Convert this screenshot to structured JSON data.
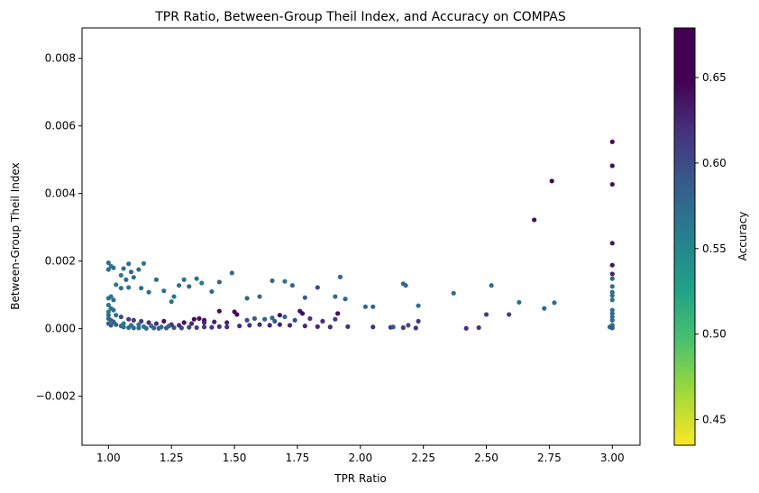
{
  "chart_data": {
    "type": "scatter",
    "title": "TPR Ratio, Between-Group Theil Index, and Accuracy on COMPAS",
    "xlabel": "TPR Ratio",
    "ylabel": "Between-Group Theil Index",
    "colorbar_label": "Accuracy",
    "colormap": "viridis_r",
    "xlim": [
      0.895,
      3.11
    ],
    "ylim": [
      -0.00345,
      0.0089
    ],
    "clim": [
      0.435,
      0.679
    ],
    "x_ticks": [
      1.0,
      1.25,
      1.5,
      1.75,
      2.0,
      2.25,
      2.5,
      2.75,
      3.0
    ],
    "x_tick_labels": [
      "1.00",
      "1.25",
      "1.50",
      "1.75",
      "2.00",
      "2.25",
      "2.50",
      "2.75",
      "3.00"
    ],
    "y_ticks": [
      -0.002,
      0.0,
      0.002,
      0.004,
      0.006,
      0.008
    ],
    "y_tick_labels": [
      "−0.002",
      "0.000",
      "0.002",
      "0.004",
      "0.006",
      "0.008"
    ],
    "c_ticks": [
      0.45,
      0.5,
      0.55,
      0.6,
      0.65
    ],
    "c_tick_labels": [
      "0.45",
      "0.50",
      "0.55",
      "0.60",
      "0.65"
    ],
    "points": [
      [
        1.0,
        0.00195,
        0.57
      ],
      [
        1.01,
        0.00185,
        0.56
      ],
      [
        1.0,
        0.00175,
        0.575
      ],
      [
        1.02,
        0.0018,
        0.57
      ],
      [
        1.06,
        0.00178,
        0.57
      ],
      [
        1.08,
        0.00192,
        0.575
      ],
      [
        1.09,
        0.00168,
        0.58
      ],
      [
        1.14,
        0.00193,
        0.565
      ],
      [
        1.12,
        0.00175,
        0.57
      ],
      [
        1.05,
        0.00158,
        0.56
      ],
      [
        1.07,
        0.00145,
        0.575
      ],
      [
        1.1,
        0.00152,
        0.57
      ],
      [
        1.03,
        0.0013,
        0.56
      ],
      [
        1.05,
        0.0012,
        0.57
      ],
      [
        1.08,
        0.00122,
        0.565
      ],
      [
        1.13,
        0.0012,
        0.57
      ],
      [
        1.16,
        0.00108,
        0.575
      ],
      [
        1.19,
        0.00145,
        0.575
      ],
      [
        1.22,
        0.00112,
        0.57
      ],
      [
        1.26,
        0.00095,
        0.565
      ],
      [
        1.3,
        0.00145,
        0.57
      ],
      [
        1.32,
        0.00125,
        0.575
      ],
      [
        1.35,
        0.00148,
        0.57
      ],
      [
        1.37,
        0.00135,
        0.565
      ],
      [
        1.41,
        0.0011,
        0.575
      ],
      [
        1.44,
        0.00138,
        0.58
      ],
      [
        1.28,
        0.00128,
        0.57
      ],
      [
        1.25,
        0.0008,
        0.57
      ],
      [
        1.49,
        0.00165,
        0.575
      ],
      [
        1.55,
        0.0009,
        0.58
      ],
      [
        1.65,
        0.00142,
        0.575
      ],
      [
        1.7,
        0.0014,
        0.57
      ],
      [
        1.73,
        0.00128,
        0.58
      ],
      [
        1.6,
        0.00095,
        0.575
      ],
      [
        1.78,
        0.00092,
        0.585
      ],
      [
        1.92,
        0.00153,
        0.58
      ],
      [
        1.83,
        0.00122,
        0.6
      ],
      [
        1.9,
        0.00095,
        0.575
      ],
      [
        1.94,
        0.00088,
        0.58
      ],
      [
        2.02,
        0.00065,
        0.575
      ],
      [
        2.05,
        0.00065,
        0.58
      ],
      [
        2.17,
        0.00133,
        0.575
      ],
      [
        2.18,
        0.00128,
        0.575
      ],
      [
        2.23,
        0.00068,
        0.57
      ],
      [
        2.37,
        0.00105,
        0.575
      ],
      [
        2.52,
        0.00128,
        0.575
      ],
      [
        2.63,
        0.00078,
        0.57
      ],
      [
        2.73,
        0.0006,
        0.575
      ],
      [
        2.77,
        0.00077,
        0.57
      ],
      [
        2.5,
        0.00042,
        0.61
      ],
      [
        2.59,
        0.00042,
        0.61
      ],
      [
        2.69,
        0.00322,
        0.665
      ],
      [
        2.76,
        0.00437,
        0.67
      ],
      [
        3.0,
        0.00553,
        0.665
      ],
      [
        3.0,
        0.00482,
        0.665
      ],
      [
        3.0,
        0.00427,
        0.66
      ],
      [
        3.0,
        0.00253,
        0.655
      ],
      [
        3.0,
        0.00188,
        0.655
      ],
      [
        3.0,
        0.00162,
        0.64
      ],
      [
        3.0,
        0.00148,
        0.575
      ],
      [
        3.0,
        0.00125,
        0.57
      ],
      [
        3.0,
        0.00108,
        0.575
      ],
      [
        3.0,
        0.00098,
        0.57
      ],
      [
        3.0,
        0.00085,
        0.565
      ],
      [
        3.0,
        0.00055,
        0.57
      ],
      [
        3.0,
        0.00045,
        0.575
      ],
      [
        3.0,
        0.00035,
        0.57
      ],
      [
        3.0,
        0.00025,
        0.575
      ],
      [
        3.0,
        0.0001,
        0.575
      ],
      [
        2.99,
        5e-05,
        0.58
      ],
      [
        3.0,
        2e-05,
        0.59
      ],
      [
        1.34,
        0.00028,
        0.67
      ],
      [
        1.36,
        0.0003,
        0.665
      ],
      [
        1.38,
        0.00025,
        0.67
      ],
      [
        1.5,
        0.0005,
        0.665
      ],
      [
        1.51,
        0.00042,
        0.67
      ],
      [
        1.44,
        0.00052,
        0.665
      ],
      [
        1.76,
        0.00052,
        0.66
      ],
      [
        1.77,
        0.00045,
        0.665
      ],
      [
        1.91,
        0.00045,
        0.665
      ],
      [
        1.68,
        0.0004,
        0.66
      ],
      [
        1.22,
        0.00022,
        0.66
      ],
      [
        1.3,
        0.00018,
        0.665
      ],
      [
        1.0,
        0.0009,
        0.57
      ],
      [
        1.01,
        0.00095,
        0.565
      ],
      [
        1.02,
        0.00085,
        0.57
      ],
      [
        1.0,
        0.0007,
        0.565
      ],
      [
        1.01,
        0.0006,
        0.57
      ],
      [
        1.0,
        0.0005,
        0.56
      ],
      [
        1.02,
        0.00055,
        0.57
      ],
      [
        1.0,
        0.0004,
        0.575
      ],
      [
        1.03,
        0.0004,
        0.57
      ],
      [
        1.0,
        0.0003,
        0.575
      ],
      [
        1.01,
        0.00025,
        0.58
      ],
      [
        1.02,
        0.0002,
        0.585
      ],
      [
        1.0,
        0.00015,
        0.58
      ],
      [
        1.01,
        0.0001,
        0.585
      ],
      [
        1.03,
        0.00012,
        0.58
      ],
      [
        1.05,
        8e-05,
        0.575
      ],
      [
        1.06,
        5e-05,
        0.57
      ],
      [
        1.08,
        3e-05,
        0.575
      ],
      [
        1.1,
        2e-05,
        0.575
      ],
      [
        1.12,
        2e-05,
        0.57
      ],
      [
        1.15,
        1e-05,
        0.58
      ],
      [
        1.18,
        2e-05,
        0.585
      ],
      [
        1.2,
        1e-05,
        0.59
      ],
      [
        1.23,
        2e-05,
        0.59
      ],
      [
        1.26,
        3e-05,
        0.595
      ],
      [
        1.29,
        2e-05,
        0.6
      ],
      [
        1.32,
        4e-05,
        0.605
      ],
      [
        1.35,
        3e-05,
        0.61
      ],
      [
        1.38,
        5e-05,
        0.61
      ],
      [
        1.41,
        4e-05,
        0.615
      ],
      [
        1.44,
        6e-05,
        0.62
      ],
      [
        1.47,
        5e-05,
        0.62
      ],
      [
        1.52,
        8e-05,
        0.625
      ],
      [
        1.56,
        0.0001,
        0.62
      ],
      [
        1.6,
        0.00012,
        0.63
      ],
      [
        1.64,
        0.0001,
        0.63
      ],
      [
        1.68,
        0.00012,
        0.635
      ],
      [
        1.72,
        0.0001,
        0.63
      ],
      [
        1.78,
        8e-05,
        0.63
      ],
      [
        1.83,
        6e-05,
        0.63
      ],
      [
        1.88,
        5e-05,
        0.625
      ],
      [
        1.95,
        6e-05,
        0.62
      ],
      [
        2.05,
        5e-05,
        0.62
      ],
      [
        2.12,
        4e-05,
        0.62
      ],
      [
        2.17,
        3e-05,
        0.615
      ],
      [
        2.22,
        2e-05,
        0.62
      ],
      [
        2.42,
        1e-05,
        0.62
      ],
      [
        2.47,
        3e-05,
        0.615
      ],
      [
        1.05,
        0.00035,
        0.6
      ],
      [
        1.08,
        0.00028,
        0.61
      ],
      [
        1.1,
        0.00025,
        0.615
      ],
      [
        1.13,
        0.00022,
        0.61
      ],
      [
        1.16,
        0.00018,
        0.62
      ],
      [
        1.19,
        0.00015,
        0.625
      ],
      [
        1.25,
        0.00012,
        0.62
      ],
      [
        1.28,
        0.0001,
        0.625
      ],
      [
        1.33,
        0.00015,
        0.63
      ],
      [
        1.38,
        0.00018,
        0.635
      ],
      [
        1.42,
        0.0002,
        0.64
      ],
      [
        1.47,
        0.00018,
        0.635
      ],
      [
        1.55,
        0.00025,
        0.6
      ],
      [
        1.58,
        0.0003,
        0.59
      ],
      [
        1.62,
        0.00028,
        0.585
      ],
      [
        1.65,
        0.00032,
        0.58
      ],
      [
        1.66,
        0.00022,
        0.59
      ],
      [
        1.7,
        0.00035,
        0.58
      ],
      [
        1.74,
        0.00025,
        0.6
      ],
      [
        1.8,
        0.0003,
        0.62
      ],
      [
        1.85,
        0.00022,
        0.625
      ],
      [
        1.9,
        0.00028,
        0.61
      ],
      [
        2.23,
        0.00022,
        0.615
      ],
      [
        2.19,
        0.0001,
        0.6
      ],
      [
        2.13,
        5e-05,
        0.59
      ],
      [
        1.06,
        0.00015,
        0.56
      ],
      [
        1.09,
        0.0001,
        0.565
      ],
      [
        1.12,
        0.00012,
        0.57
      ],
      [
        1.14,
        6e-05,
        0.565
      ],
      [
        1.17,
        8e-05,
        0.57
      ],
      [
        1.21,
        5e-05,
        0.575
      ],
      [
        1.24,
        8e-05,
        0.58
      ]
    ]
  }
}
